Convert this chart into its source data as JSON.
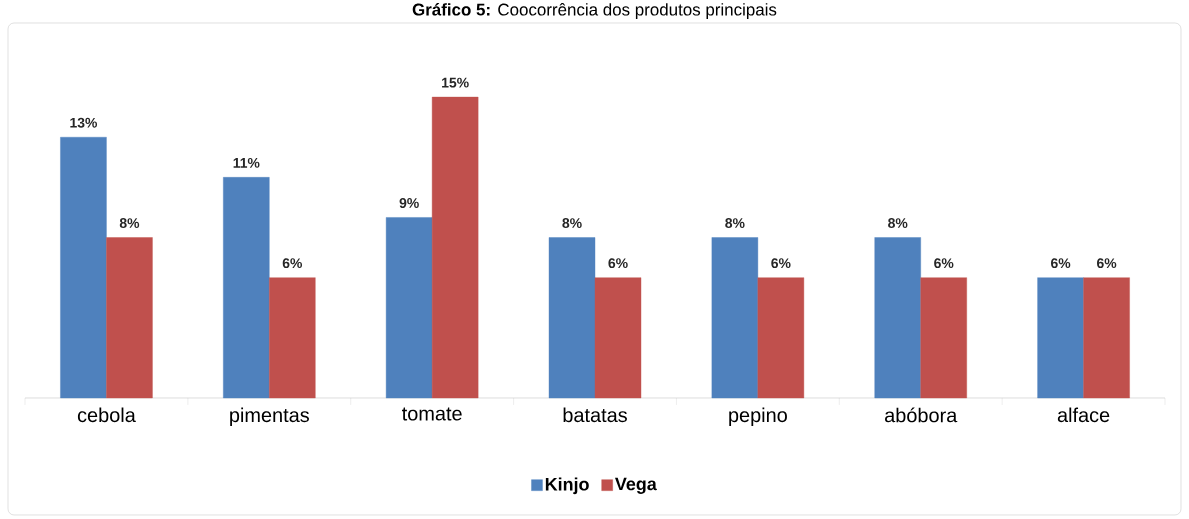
{
  "chart_data": {
    "type": "bar",
    "title": "**Gráfico 5:** Coocorrência dos produtos principais",
    "categories": [
      "cebola",
      "pimentas",
      "tomate",
      "batatas",
      "pepino",
      "abóbora",
      "alface"
    ],
    "series": [
      {
        "name": "Kinjo",
        "color": "#4f81bd",
        "values": [
          13,
          11,
          9,
          8,
          8,
          8,
          6
        ],
        "value_labels": [
          "13%",
          "11%",
          "9%",
          "8%",
          "8%",
          "8%",
          "6%"
        ]
      },
      {
        "name": "Vega",
        "color": "#c0504d",
        "values": [
          8,
          6,
          15,
          6,
          6,
          6,
          6
        ],
        "value_labels": [
          "8%",
          "6%",
          "15%",
          "6%",
          "6%",
          "6%",
          "6%"
        ]
      }
    ],
    "legend": "bottom"
  }
}
